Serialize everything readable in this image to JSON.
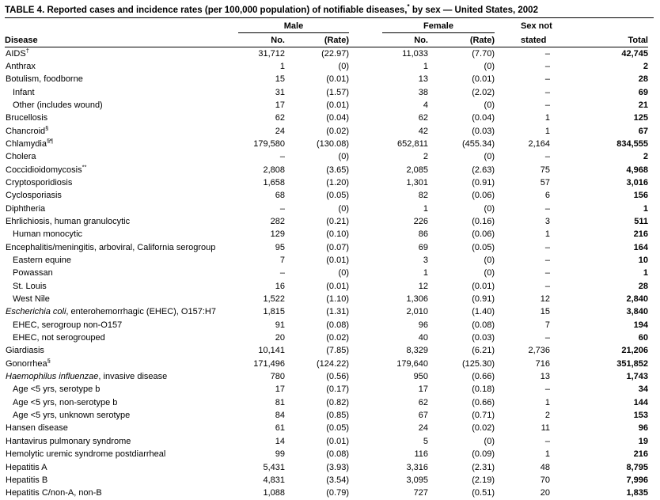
{
  "title": {
    "text": "TABLE 4. Reported cases and incidence rates (per 100,000 population) of notifiable diseases,",
    "sup": "*",
    "rest": " by sex — United States, 2002"
  },
  "header": {
    "male": "Male",
    "female": "Female",
    "sex_not_line1": "Sex not",
    "sex_not_line2": "stated",
    "disease": "Disease",
    "no_male": "No.",
    "rate_male": "(Rate)",
    "no_female": "No.",
    "rate_female": "(Rate)",
    "total": "Total"
  },
  "rows": [
    {
      "name": "AIDS",
      "sup": "†",
      "male_no": "31,712",
      "male_rate": "(22.97)",
      "female_no": "11,033",
      "female_rate": "(7.70)",
      "sex_not_stated": "–",
      "total": "42,745"
    },
    {
      "name": "Anthrax",
      "male_no": "1",
      "male_rate": "(0)",
      "female_no": "1",
      "female_rate": "(0)",
      "sex_not_stated": "–",
      "total": "2"
    },
    {
      "name": "Botulism, foodborne",
      "male_no": "15",
      "male_rate": "(0.01)",
      "female_no": "13",
      "female_rate": "(0.01)",
      "sex_not_stated": "–",
      "total": "28"
    },
    {
      "name": "Infant",
      "indent": true,
      "male_no": "31",
      "male_rate": "(1.57)",
      "female_no": "38",
      "female_rate": "(2.02)",
      "sex_not_stated": "–",
      "total": "69"
    },
    {
      "name": "Other (includes wound)",
      "indent": true,
      "male_no": "17",
      "male_rate": "(0.01)",
      "female_no": "4",
      "female_rate": "(0)",
      "sex_not_stated": "–",
      "total": "21"
    },
    {
      "name": "Brucellosis",
      "male_no": "62",
      "male_rate": "(0.04)",
      "female_no": "62",
      "female_rate": "(0.04)",
      "sex_not_stated": "1",
      "total": "125"
    },
    {
      "name": "Chancroid",
      "sup": "§",
      "male_no": "24",
      "male_rate": "(0.02)",
      "female_no": "42",
      "female_rate": "(0.03)",
      "sex_not_stated": "1",
      "total": "67"
    },
    {
      "name": "Chlamydia",
      "sup": "§¶",
      "male_no": "179,580",
      "male_rate": "(130.08)",
      "female_no": "652,811",
      "female_rate": "(455.34)",
      "sex_not_stated": "2,164",
      "total": "834,555"
    },
    {
      "name": "Cholera",
      "male_no": "–",
      "male_rate": "(0)",
      "female_no": "2",
      "female_rate": "(0)",
      "sex_not_stated": "–",
      "total": "2"
    },
    {
      "name": "Coccidioidomycosis",
      "sup": "**",
      "male_no": "2,808",
      "male_rate": "(3.65)",
      "female_no": "2,085",
      "female_rate": "(2.63)",
      "sex_not_stated": "75",
      "total": "4,968"
    },
    {
      "name": "Cryptosporidiosis",
      "male_no": "1,658",
      "male_rate": "(1.20)",
      "female_no": "1,301",
      "female_rate": "(0.91)",
      "sex_not_stated": "57",
      "total": "3,016"
    },
    {
      "name": "Cyclosporiasis",
      "male_no": "68",
      "male_rate": "(0.05)",
      "female_no": "82",
      "female_rate": "(0.06)",
      "sex_not_stated": "6",
      "total": "156"
    },
    {
      "name": "Diphtheria",
      "male_no": "–",
      "male_rate": "(0)",
      "female_no": "1",
      "female_rate": "(0)",
      "sex_not_stated": "–",
      "total": "1"
    },
    {
      "name": "Ehrlichiosis, human granulocytic",
      "male_no": "282",
      "male_rate": "(0.21)",
      "female_no": "226",
      "female_rate": "(0.16)",
      "sex_not_stated": "3",
      "total": "511"
    },
    {
      "name": "Human monocytic",
      "indent": true,
      "male_no": "129",
      "male_rate": "(0.10)",
      "female_no": "86",
      "female_rate": "(0.06)",
      "sex_not_stated": "1",
      "total": "216"
    },
    {
      "name": "Encephalitis/meningitis, arboviral, California serogroup",
      "male_no": "95",
      "male_rate": "(0.07)",
      "female_no": "69",
      "female_rate": "(0.05)",
      "sex_not_stated": "–",
      "total": "164"
    },
    {
      "name": "Eastern equine",
      "indent": true,
      "male_no": "7",
      "male_rate": "(0.01)",
      "female_no": "3",
      "female_rate": "(0)",
      "sex_not_stated": "–",
      "total": "10"
    },
    {
      "name": "Powassan",
      "indent": true,
      "male_no": "–",
      "male_rate": "(0)",
      "female_no": "1",
      "female_rate": "(0)",
      "sex_not_stated": "–",
      "total": "1"
    },
    {
      "name": "St. Louis",
      "indent": true,
      "male_no": "16",
      "male_rate": "(0.01)",
      "female_no": "12",
      "female_rate": "(0.01)",
      "sex_not_stated": "–",
      "total": "28"
    },
    {
      "name": "West Nile",
      "indent": true,
      "male_no": "1,522",
      "male_rate": "(1.10)",
      "female_no": "1,306",
      "female_rate": "(0.91)",
      "sex_not_stated": "12",
      "total": "2,840"
    },
    {
      "italic": "Escherichia coli",
      "name": ", enterohemorrhagic (EHEC), O157:H7",
      "male_no": "1,815",
      "male_rate": "(1.31)",
      "female_no": "2,010",
      "female_rate": "(1.40)",
      "sex_not_stated": "15",
      "total": "3,840"
    },
    {
      "name": "EHEC, serogroup non-O157",
      "indent": true,
      "male_no": "91",
      "male_rate": "(0.08)",
      "female_no": "96",
      "female_rate": "(0.08)",
      "sex_not_stated": "7",
      "total": "194"
    },
    {
      "name": "EHEC, not serogrouped",
      "indent": true,
      "male_no": "20",
      "male_rate": "(0.02)",
      "female_no": "40",
      "female_rate": "(0.03)",
      "sex_not_stated": "–",
      "total": "60"
    },
    {
      "name": "Giardiasis",
      "male_no": "10,141",
      "male_rate": "(7.85)",
      "female_no": "8,329",
      "female_rate": "(6.21)",
      "sex_not_stated": "2,736",
      "total": "21,206"
    },
    {
      "name": "Gonorrhea",
      "sup": "§",
      "male_no": "171,496",
      "male_rate": "(124.22)",
      "female_no": "179,640",
      "female_rate": "(125.30)",
      "sex_not_stated": "716",
      "total": "351,852"
    },
    {
      "italic": "Haemophilus influenzae",
      "name": ", invasive disease",
      "male_no": "780",
      "male_rate": "(0.56)",
      "female_no": "950",
      "female_rate": "(0.66)",
      "sex_not_stated": "13",
      "total": "1,743"
    },
    {
      "name": "Age <5 yrs, serotype b",
      "indent": true,
      "male_no": "17",
      "male_rate": "(0.17)",
      "female_no": "17",
      "female_rate": "(0.18)",
      "sex_not_stated": "–",
      "total": "34"
    },
    {
      "name": "Age <5 yrs, non-serotype b",
      "indent": true,
      "male_no": "81",
      "male_rate": "(0.82)",
      "female_no": "62",
      "female_rate": "(0.66)",
      "sex_not_stated": "1",
      "total": "144"
    },
    {
      "name": "Age <5 yrs, unknown serotype",
      "indent": true,
      "male_no": "84",
      "male_rate": "(0.85)",
      "female_no": "67",
      "female_rate": "(0.71)",
      "sex_not_stated": "2",
      "total": "153"
    },
    {
      "name": "Hansen disease",
      "male_no": "61",
      "male_rate": "(0.05)",
      "female_no": "24",
      "female_rate": "(0.02)",
      "sex_not_stated": "11",
      "total": "96"
    },
    {
      "name": "Hantavirus pulmonary syndrome",
      "male_no": "14",
      "male_rate": "(0.01)",
      "female_no": "5",
      "female_rate": "(0)",
      "sex_not_stated": "–",
      "total": "19"
    },
    {
      "name": "Hemolytic uremic syndrome postdiarrheal",
      "male_no": "99",
      "male_rate": "(0.08)",
      "female_no": "116",
      "female_rate": "(0.09)",
      "sex_not_stated": "1",
      "total": "216"
    },
    {
      "name": "Hepatitis A",
      "male_no": "5,431",
      "male_rate": "(3.93)",
      "female_no": "3,316",
      "female_rate": "(2.31)",
      "sex_not_stated": "48",
      "total": "8,795"
    },
    {
      "name": "Hepatitis B",
      "male_no": "4,831",
      "male_rate": "(3.54)",
      "female_no": "3,095",
      "female_rate": "(2.19)",
      "sex_not_stated": "70",
      "total": "7,996"
    },
    {
      "name": "Hepatitis C/non-A, non-B",
      "male_no": "1,088",
      "male_rate": "(0.79)",
      "female_no": "727",
      "female_rate": "(0.51)",
      "sex_not_stated": "20",
      "total": "1,835"
    }
  ]
}
